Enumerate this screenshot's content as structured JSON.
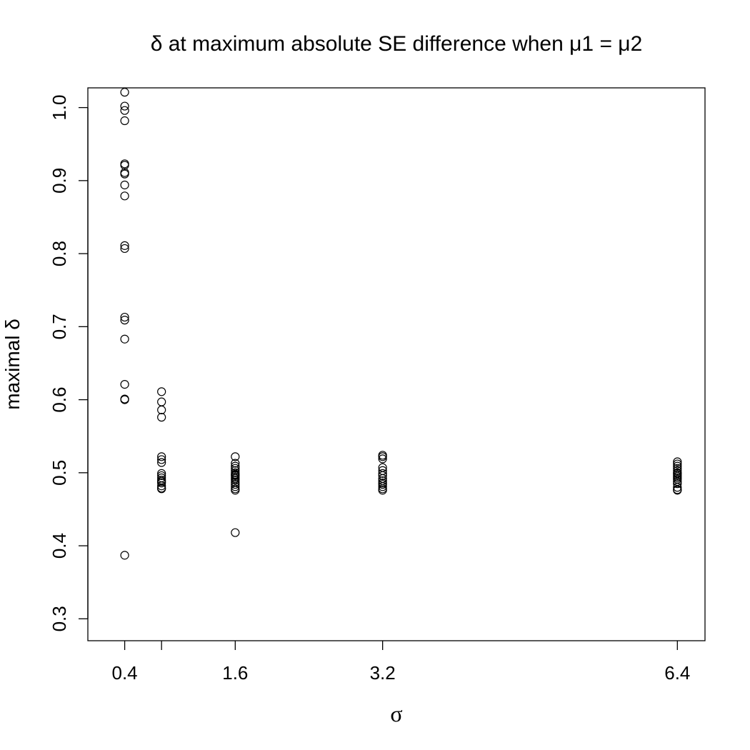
{
  "chart_data": {
    "type": "scatter",
    "title": "δ at maximum absolute SE difference when μ1 = μ2",
    "xlabel": "σ",
    "ylabel": "maximal δ",
    "xlim": [
      0.0,
      6.7
    ],
    "ylim": [
      0.27,
      1.027
    ],
    "x_ticks": [
      0.4,
      0.8,
      1.6,
      3.2,
      6.4
    ],
    "x_tick_labels": [
      "0.4",
      "",
      "1.6",
      "3.2",
      "6.4"
    ],
    "y_ticks": [
      0.3,
      0.4,
      0.5,
      0.6,
      0.7,
      0.8,
      0.9,
      1.0
    ],
    "y_tick_labels": [
      "0.3",
      "0.4",
      "0.5",
      "0.6",
      "0.7",
      "0.8",
      "0.9",
      "1.0"
    ],
    "grid": false,
    "marker": "open-circle",
    "series": [
      {
        "x": [
          0.4,
          0.4,
          0.4,
          0.4,
          0.4,
          0.4,
          0.4,
          0.4,
          0.4,
          0.4,
          0.4,
          0.4,
          0.4,
          0.4,
          0.4,
          0.4,
          0.4,
          0.4,
          0.4,
          0.8,
          0.8,
          0.8,
          0.8,
          0.8,
          0.8,
          0.8,
          0.8,
          0.8,
          0.8,
          0.8,
          0.8,
          0.8,
          0.8,
          0.8,
          0.8,
          1.6,
          1.6,
          1.6,
          1.6,
          1.6,
          1.6,
          1.6,
          1.6,
          1.6,
          1.6,
          1.6,
          1.6,
          1.6,
          1.6,
          1.6,
          1.6,
          1.6,
          1.6,
          3.2,
          3.2,
          3.2,
          3.2,
          3.2,
          3.2,
          3.2,
          3.2,
          3.2,
          3.2,
          3.2,
          3.2,
          3.2,
          3.2,
          6.4,
          6.4,
          6.4,
          6.4,
          6.4,
          6.4,
          6.4,
          6.4,
          6.4,
          6.4,
          6.4,
          6.4,
          6.4,
          6.4,
          6.4,
          6.4
        ],
        "y": [
          1.021,
          1.002,
          0.996,
          0.982,
          0.923,
          0.921,
          0.911,
          0.909,
          0.894,
          0.879,
          0.811,
          0.807,
          0.713,
          0.709,
          0.683,
          0.621,
          0.601,
          0.387,
          0.6,
          0.611,
          0.597,
          0.586,
          0.576,
          0.522,
          0.518,
          0.514,
          0.499,
          0.496,
          0.493,
          0.49,
          0.488,
          0.486,
          0.482,
          0.479,
          0.478,
          0.522,
          0.513,
          0.509,
          0.506,
          0.503,
          0.5,
          0.498,
          0.496,
          0.494,
          0.492,
          0.49,
          0.487,
          0.484,
          0.481,
          0.478,
          0.476,
          0.418,
          0.497,
          0.524,
          0.522,
          0.519,
          0.507,
          0.503,
          0.499,
          0.496,
          0.492,
          0.489,
          0.486,
          0.484,
          0.481,
          0.478,
          0.476,
          0.515,
          0.512,
          0.509,
          0.506,
          0.503,
          0.5,
          0.499,
          0.497,
          0.495,
          0.493,
          0.491,
          0.488,
          0.485,
          0.48,
          0.477,
          0.476
        ]
      }
    ]
  }
}
